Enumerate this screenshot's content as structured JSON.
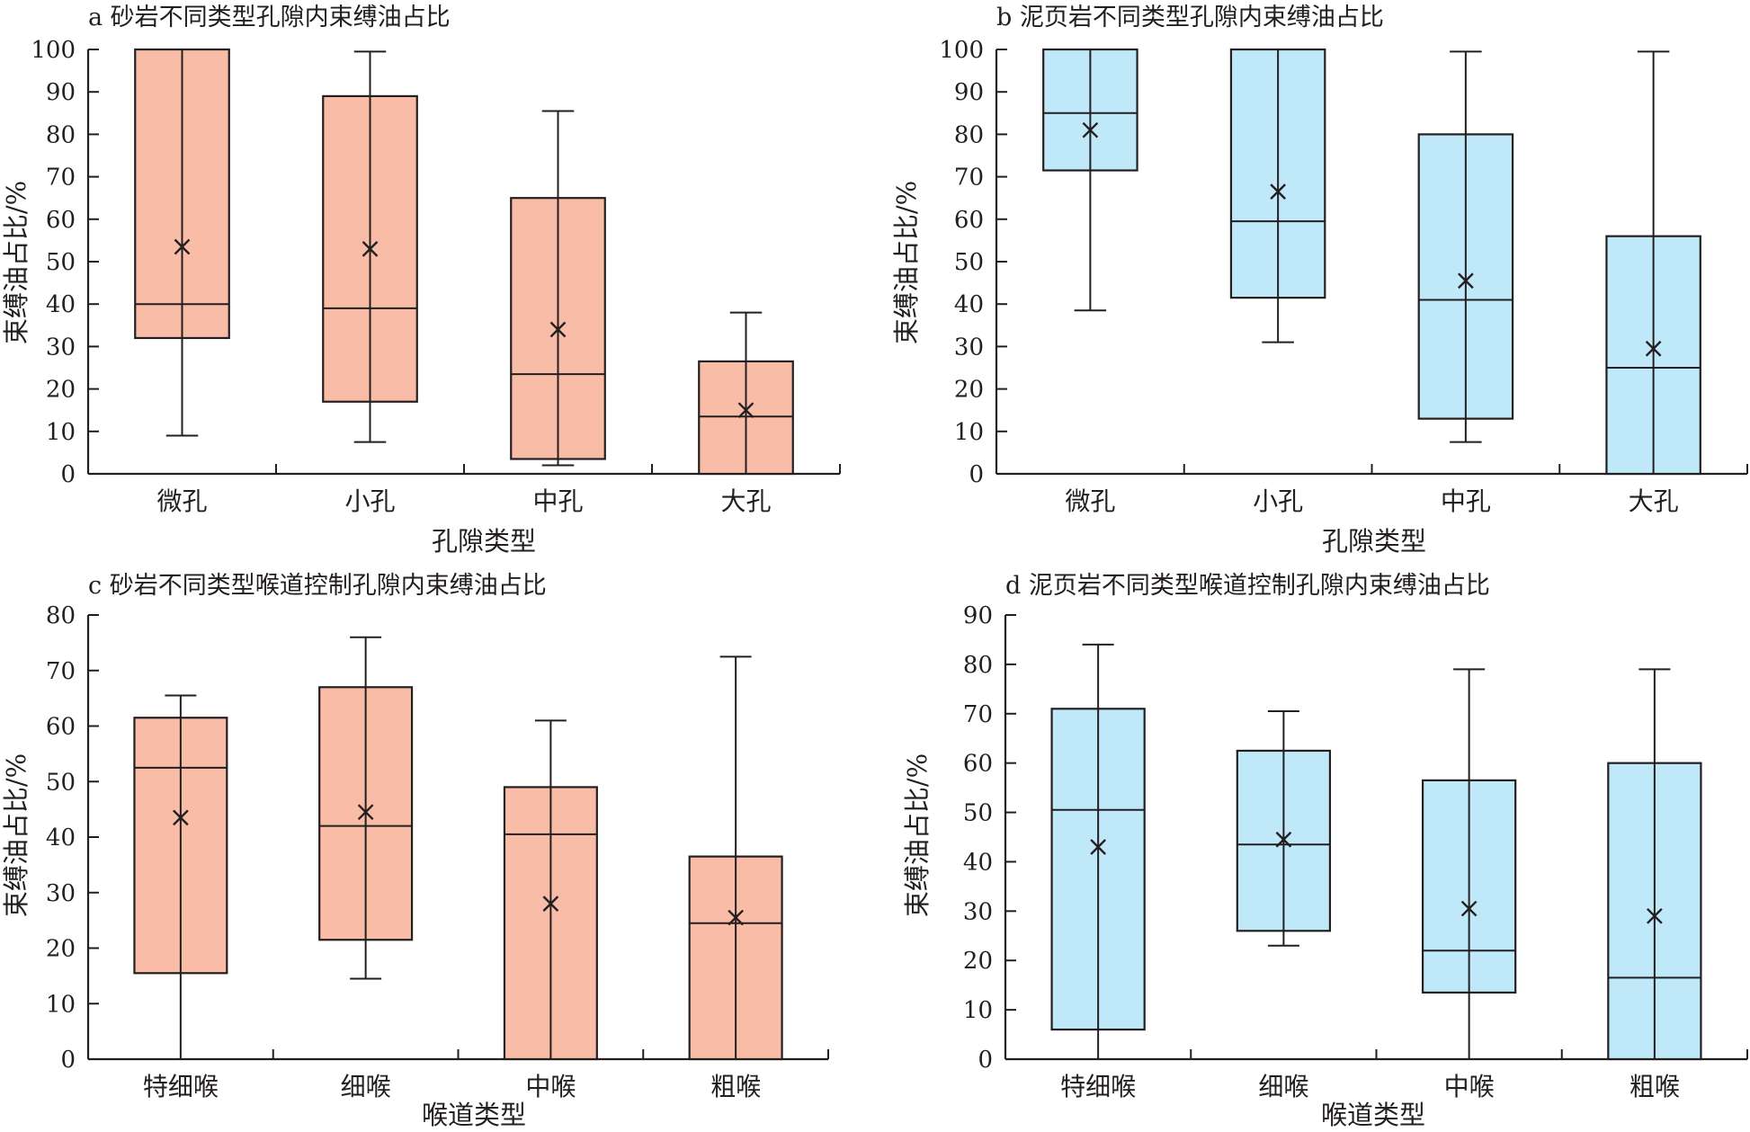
{
  "colors": {
    "sandstone_fill": "#f8bca7",
    "shale_fill": "#bfe8f8",
    "stroke": "#231f20"
  },
  "chart_data": [
    {
      "id": "a",
      "type": "box",
      "title": "a 砂岩不同类型孔隙内束缚油占比",
      "xlabel": "孔隙类型",
      "ylabel": "束缚油占比/%",
      "ylim": [
        0,
        100
      ],
      "yticks": [
        0,
        10,
        20,
        30,
        40,
        50,
        60,
        70,
        80,
        90,
        100
      ],
      "fill": "sandstone",
      "categories": [
        "微孔",
        "小孔",
        "中孔",
        "大孔"
      ],
      "boxes": [
        {
          "min": 9,
          "q1": 32,
          "median": 40,
          "q3": 100,
          "max": 100,
          "mean": 53.5
        },
        {
          "min": 7.5,
          "q1": 17,
          "median": 39,
          "q3": 89,
          "max": 99.5,
          "mean": 53
        },
        {
          "min": 2,
          "q1": 3.5,
          "median": 23.5,
          "q3": 65,
          "max": 85.5,
          "mean": 34
        },
        {
          "min": 0,
          "q1": 0,
          "median": 13.5,
          "q3": 26.5,
          "max": 38,
          "mean": 15
        }
      ]
    },
    {
      "id": "b",
      "type": "box",
      "title": "b 泥页岩不同类型孔隙内束缚油占比",
      "xlabel": "孔隙类型",
      "ylabel": "束缚油占比/%",
      "ylim": [
        0,
        100
      ],
      "yticks": [
        0,
        10,
        20,
        30,
        40,
        50,
        60,
        70,
        80,
        90,
        100
      ],
      "fill": "shale",
      "categories": [
        "微孔",
        "小孔",
        "中孔",
        "大孔"
      ],
      "boxes": [
        {
          "min": 38.5,
          "q1": 71.5,
          "median": 85,
          "q3": 100,
          "max": 100,
          "mean": 81
        },
        {
          "min": 31,
          "q1": 41.5,
          "median": 59.5,
          "q3": 100,
          "max": 100,
          "mean": 66.5
        },
        {
          "min": 7.5,
          "q1": 13,
          "median": 41,
          "q3": 80,
          "max": 99.5,
          "mean": 45.5
        },
        {
          "min": 0,
          "q1": 0,
          "median": 25,
          "q3": 56,
          "max": 99.5,
          "mean": 29.5
        }
      ]
    },
    {
      "id": "c",
      "type": "box",
      "title": "c 砂岩不同类型喉道控制孔隙内束缚油占比",
      "xlabel": "喉道类型",
      "ylabel": "束缚油占比/%",
      "ylim": [
        0,
        80
      ],
      "yticks": [
        0,
        10,
        20,
        30,
        40,
        50,
        60,
        70,
        80
      ],
      "fill": "sandstone",
      "categories": [
        "特细喉",
        "细喉",
        "中喉",
        "粗喉"
      ],
      "boxes": [
        {
          "min": 0,
          "q1": 15.5,
          "median": 52.5,
          "q3": 61.5,
          "max": 65.5,
          "mean": 43.5
        },
        {
          "min": 14.5,
          "q1": 21.5,
          "median": 42,
          "q3": 67,
          "max": 76,
          "mean": 44.5
        },
        {
          "min": 0,
          "q1": 0,
          "median": 40.5,
          "q3": 49,
          "max": 61,
          "mean": 28
        },
        {
          "min": 0,
          "q1": 0,
          "median": 24.5,
          "q3": 36.5,
          "max": 72.5,
          "mean": 25.5
        }
      ]
    },
    {
      "id": "d",
      "type": "box",
      "title": "d 泥页岩不同类型喉道控制孔隙内束缚油占比",
      "xlabel": "喉道类型",
      "ylabel": "束缚油占比/%",
      "ylim": [
        0,
        90
      ],
      "yticks": [
        0,
        10,
        20,
        30,
        40,
        50,
        60,
        70,
        80,
        90
      ],
      "fill": "shale",
      "categories": [
        "特细喉",
        "细喉",
        "中喉",
        "粗喉"
      ],
      "boxes": [
        {
          "min": 0,
          "q1": 6,
          "median": 50.5,
          "q3": 71,
          "max": 84,
          "mean": 43
        },
        {
          "min": 23,
          "q1": 26,
          "median": 43.5,
          "q3": 62.5,
          "max": 70.5,
          "mean": 44.5
        },
        {
          "min": 0,
          "q1": 13.5,
          "median": 22,
          "q3": 56.5,
          "max": 79,
          "mean": 30.5
        },
        {
          "min": 0,
          "q1": 0,
          "median": 16.5,
          "q3": 60,
          "max": 79,
          "mean": 29
        }
      ]
    }
  ]
}
